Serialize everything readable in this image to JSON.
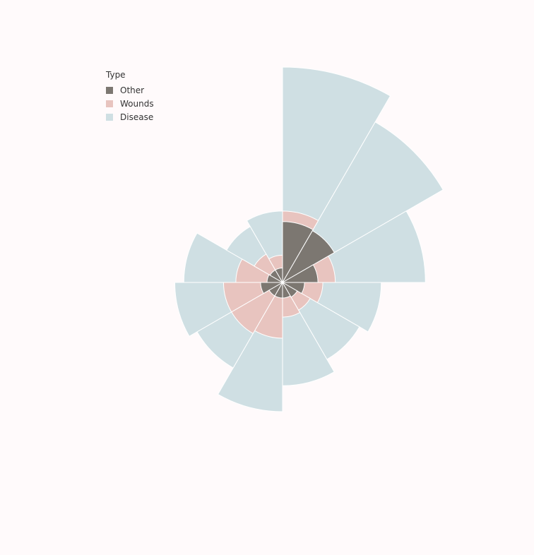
{
  "chart_data": {
    "type": "rose",
    "legend": {
      "title": "Type",
      "placement": "top-left",
      "entries": [
        {
          "label": "Other",
          "color": "#7c7771"
        },
        {
          "label": "Wounds",
          "color": "#e8c4bf"
        },
        {
          "label": "Disease",
          "color": "#cfdfe3"
        }
      ]
    },
    "sectors": 12,
    "start": "top",
    "direction": "clockwise",
    "stacking": "overlaid, drawn largest first (Disease, Wounds, Other)",
    "radial_scale": "square-root",
    "series": [
      {
        "name": "Disease",
        "color": "#cfdfe3",
        "values": [
          100,
          74,
          44,
          21,
          17,
          23,
          36,
          21,
          25,
          21,
          9,
          11
        ]
      },
      {
        "name": "Wounds",
        "color": "#e8c4bf",
        "values": [
          11,
          6,
          6,
          3.5,
          2.2,
          2.6,
          6.7,
          7.5,
          7.5,
          4.7,
          2.3,
          1.6
        ]
      },
      {
        "name": "Other",
        "color": "#7c7771",
        "values": [
          8,
          7.7,
          2.7,
          1.04,
          0.62,
          0.52,
          0.52,
          0.52,
          1.04,
          0.52,
          0.45,
          0.45
        ]
      }
    ],
    "grid": false,
    "axes": false
  }
}
